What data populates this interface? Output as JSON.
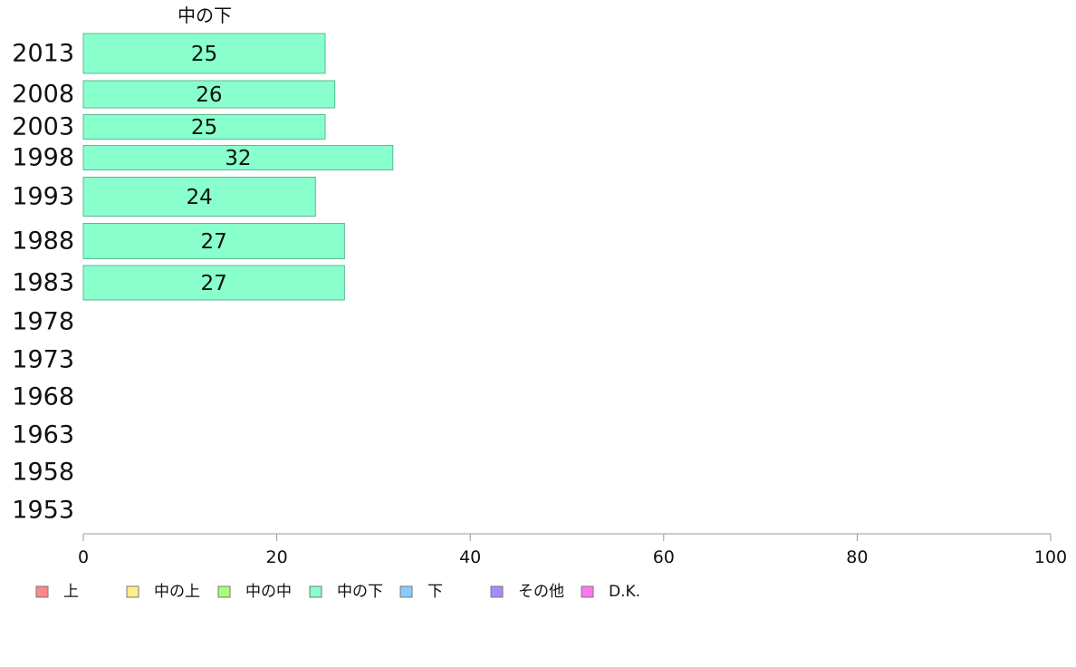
{
  "chart_data": {
    "type": "bar",
    "orientation": "horizontal",
    "series_title": "中の下",
    "categories": [
      "2013",
      "2008",
      "2003",
      "1998",
      "1993",
      "1988",
      "1983",
      "1978",
      "1973",
      "1968",
      "1963",
      "1958",
      "1953"
    ],
    "values": [
      25,
      26,
      25,
      32,
      24,
      27,
      27,
      null,
      null,
      null,
      null,
      null,
      null
    ],
    "xlim": [
      0,
      100
    ],
    "xticks": [
      0,
      20,
      40,
      60,
      80,
      100
    ],
    "grid": false,
    "legend_position": "bottom",
    "bar_color": "#88ffcc",
    "legend": [
      {
        "label": "上",
        "color": "#ff8888"
      },
      {
        "label": "中の上",
        "color": "#ffee88"
      },
      {
        "label": "中の中",
        "color": "#aaff77"
      },
      {
        "label": "中の下",
        "color": "#88ffcc"
      },
      {
        "label": "下",
        "color": "#88ccff"
      },
      {
        "label": "その他",
        "color": "#aa88ff"
      },
      {
        "label": "D.K.",
        "color": "#ff77ee"
      }
    ]
  }
}
